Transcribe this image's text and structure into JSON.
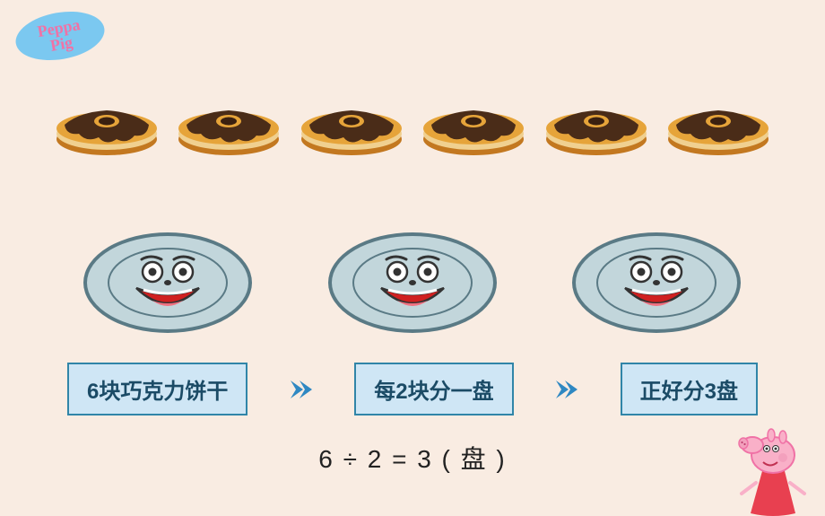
{
  "logo": {
    "text": "Peppa Pig",
    "bg": "#7bc8f0",
    "fg": "#f072a6"
  },
  "cookies": {
    "count": 6,
    "colors": {
      "biscuit": "#e6a43a",
      "choc": "#4a2c18",
      "rim": "#c37820",
      "cream": "#f0d090"
    }
  },
  "plates": {
    "count": 3,
    "colors": {
      "fill": "#c2d6db",
      "rim": "#5a7a85",
      "face": "#333",
      "mouth": "#d02020",
      "tongue": "#f07080"
    }
  },
  "boxes": {
    "items": [
      {
        "label": "6块巧克力饼干"
      },
      {
        "label": "每2块分一盘"
      },
      {
        "label": "正好分3盘"
      }
    ],
    "box_bg": "#cfe6f5",
    "box_border": "#3085a8",
    "box_text": "#1b4b66",
    "arrow_color": "#2f88c2"
  },
  "equation": {
    "text": "6  ÷  2  =  3 ( 盘 )"
  },
  "peppa_colors": {
    "body": "#f072a6",
    "face": "#f9b0c8",
    "dress": "#e84050"
  }
}
